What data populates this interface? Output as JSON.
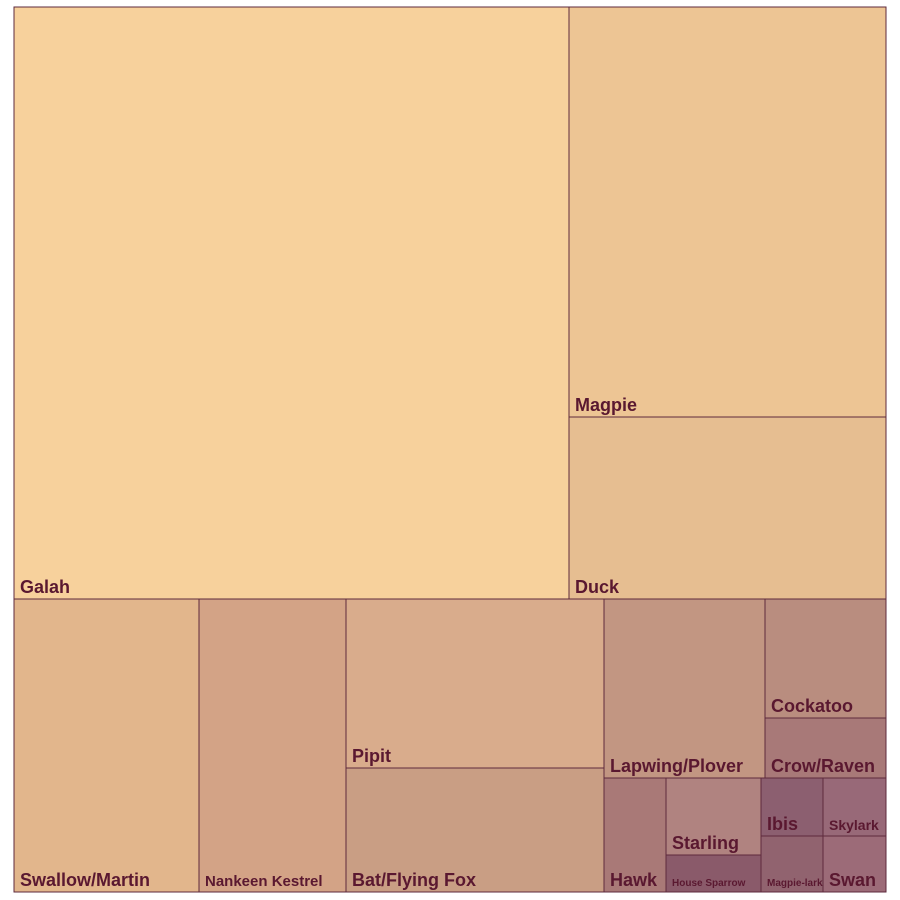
{
  "chart_data": {
    "type": "treemap",
    "title": "",
    "items": [
      {
        "label": "Galah",
        "value": 3260,
        "color": "#f7d19c"
      },
      {
        "label": "Magpie",
        "value": 1290,
        "color": "#edc594"
      },
      {
        "label": "Duck",
        "value": 575,
        "color": "#e6be91"
      },
      {
        "label": "Swallow/Martin",
        "value": 540,
        "color": "#e2b68c"
      },
      {
        "label": "Nankeen Kestrel",
        "value": 430,
        "color": "#d3a386"
      },
      {
        "label": "Pipit",
        "value": 432,
        "color": "#d9ac8c"
      },
      {
        "label": "Bat/Flying Fox",
        "value": 325,
        "color": "#c99e84"
      },
      {
        "label": "Lapwing/Plover",
        "value": 278,
        "color": "#c29682"
      },
      {
        "label": "Cockatoo",
        "value": 193,
        "color": "#b98d7f"
      },
      {
        "label": "Crow/Raven",
        "value": 98,
        "color": "#a87978"
      },
      {
        "label": "Hawk",
        "value": 96,
        "color": "#a97977"
      },
      {
        "label": "Starling",
        "value": 102,
        "color": "#b08380"
      },
      {
        "label": "House Sparrow",
        "value": 40,
        "color": "#8a5a6a"
      },
      {
        "label": "Ibis",
        "value": 56,
        "color": "#8c5f70"
      },
      {
        "label": "Skylark",
        "value": 56,
        "color": "#986978"
      },
      {
        "label": "Magpie-lark",
        "value": 52,
        "color": "#91636f"
      },
      {
        "label": "Swan",
        "value": 52,
        "color": "#9c6b78"
      }
    ]
  }
}
